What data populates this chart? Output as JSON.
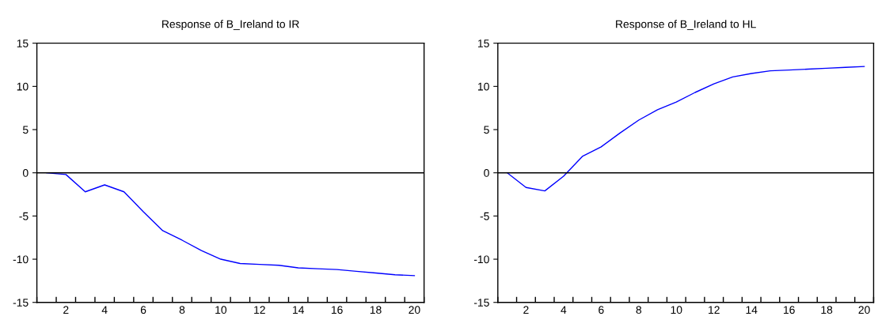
{
  "chart_data": [
    {
      "type": "line",
      "title": "Response of B_Ireland to IR",
      "x": [
        1,
        2,
        3,
        4,
        5,
        6,
        7,
        8,
        9,
        10,
        11,
        12,
        13,
        14,
        15,
        16,
        17,
        18,
        19,
        20
      ],
      "series": [
        {
          "color": "#0000ff",
          "values": [
            0,
            -0.2,
            -2.2,
            -1.4,
            -2.2,
            -4.5,
            -6.7,
            -7.8,
            -9.0,
            -10.0,
            -10.5,
            -10.6,
            -10.7,
            -11.0,
            -11.1,
            -11.2,
            -11.4,
            -11.6,
            -11.8,
            -11.9
          ]
        }
      ],
      "xlim": [
        0.5,
        20.5
      ],
      "xticks": [
        {
          "value": 0.5,
          "label": null
        },
        {
          "value": 1.5,
          "label": null
        },
        {
          "value": 2,
          "label": "2"
        },
        {
          "value": 2.5,
          "label": null
        },
        {
          "value": 3.5,
          "label": null
        },
        {
          "value": 4,
          "label": "4"
        },
        {
          "value": 4.5,
          "label": null
        },
        {
          "value": 5.5,
          "label": null
        },
        {
          "value": 6,
          "label": "6"
        },
        {
          "value": 6.5,
          "label": null
        },
        {
          "value": 7.5,
          "label": null
        },
        {
          "value": 8,
          "label": "8"
        },
        {
          "value": 8.5,
          "label": null
        },
        {
          "value": 9.5,
          "label": null
        },
        {
          "value": 10,
          "label": "10"
        },
        {
          "value": 10.5,
          "label": null
        },
        {
          "value": 11.5,
          "label": null
        },
        {
          "value": 12,
          "label": "12"
        },
        {
          "value": 12.5,
          "label": null
        },
        {
          "value": 13.5,
          "label": null
        },
        {
          "value": 14,
          "label": "14"
        },
        {
          "value": 14.5,
          "label": null
        },
        {
          "value": 15.5,
          "label": null
        },
        {
          "value": 16,
          "label": "16"
        },
        {
          "value": 16.5,
          "label": null
        },
        {
          "value": 17.5,
          "label": null
        },
        {
          "value": 18,
          "label": "18"
        },
        {
          "value": 18.5,
          "label": null
        },
        {
          "value": 19.5,
          "label": null
        },
        {
          "value": 20,
          "label": "20"
        },
        {
          "value": 20.5,
          "label": null
        }
      ],
      "ylim": [
        -15,
        15
      ],
      "yticks": [
        -15,
        -10,
        -5,
        0,
        5,
        10,
        15
      ],
      "ref_lines": [
        {
          "axis": "y",
          "value": 0,
          "color": "#000000"
        }
      ]
    },
    {
      "type": "line",
      "title": "Response of B_Ireland to HL",
      "x": [
        1,
        2,
        3,
        4,
        5,
        6,
        7,
        8,
        9,
        10,
        11,
        12,
        13,
        14,
        15,
        16,
        17,
        18,
        19,
        20
      ],
      "series": [
        {
          "color": "#0000ff",
          "values": [
            0,
            -1.7,
            -2.1,
            -0.4,
            1.9,
            3.0,
            4.6,
            6.1,
            7.3,
            8.2,
            9.3,
            10.3,
            11.1,
            11.5,
            11.8,
            11.9,
            12.0,
            12.1,
            12.2,
            12.3
          ]
        }
      ],
      "xlim": [
        0.5,
        20.5
      ],
      "xticks": [
        {
          "value": 0.5,
          "label": null
        },
        {
          "value": 1.5,
          "label": null
        },
        {
          "value": 2,
          "label": "2"
        },
        {
          "value": 2.5,
          "label": null
        },
        {
          "value": 3.5,
          "label": null
        },
        {
          "value": 4,
          "label": "4"
        },
        {
          "value": 4.5,
          "label": null
        },
        {
          "value": 5.5,
          "label": null
        },
        {
          "value": 6,
          "label": "6"
        },
        {
          "value": 6.5,
          "label": null
        },
        {
          "value": 7.5,
          "label": null
        },
        {
          "value": 8,
          "label": "8"
        },
        {
          "value": 8.5,
          "label": null
        },
        {
          "value": 9.5,
          "label": null
        },
        {
          "value": 10,
          "label": "10"
        },
        {
          "value": 10.5,
          "label": null
        },
        {
          "value": 11.5,
          "label": null
        },
        {
          "value": 12,
          "label": "12"
        },
        {
          "value": 12.5,
          "label": null
        },
        {
          "value": 13.5,
          "label": null
        },
        {
          "value": 14,
          "label": "14"
        },
        {
          "value": 14.5,
          "label": null
        },
        {
          "value": 15.5,
          "label": null
        },
        {
          "value": 16,
          "label": "16"
        },
        {
          "value": 16.5,
          "label": null
        },
        {
          "value": 17.5,
          "label": null
        },
        {
          "value": 18,
          "label": "18"
        },
        {
          "value": 18.5,
          "label": null
        },
        {
          "value": 19.5,
          "label": null
        },
        {
          "value": 20,
          "label": "20"
        },
        {
          "value": 20.5,
          "label": null
        }
      ],
      "ylim": [
        -15,
        15
      ],
      "yticks": [
        -15,
        -10,
        -5,
        0,
        5,
        10,
        15
      ],
      "ref_lines": [
        {
          "axis": "y",
          "value": 0,
          "color": "#000000"
        }
      ]
    }
  ]
}
